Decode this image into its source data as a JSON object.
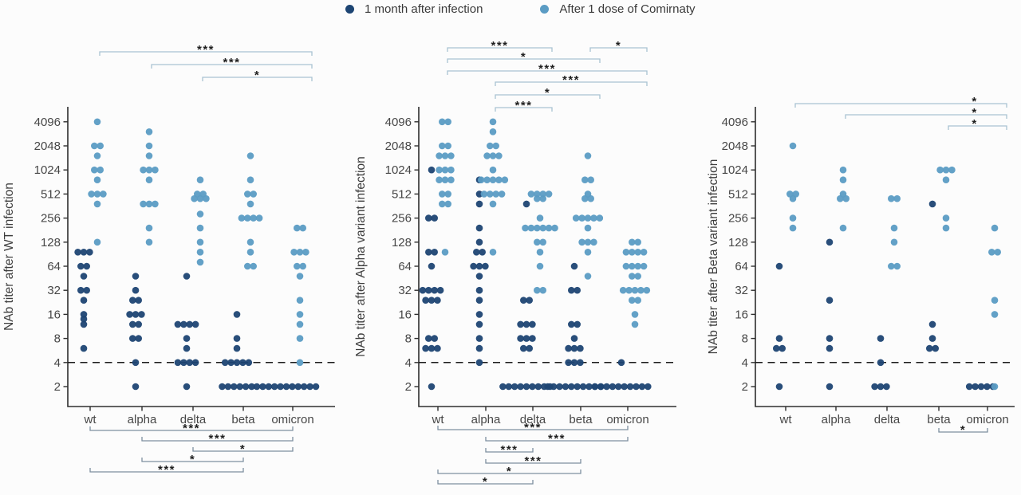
{
  "legend": {
    "items": [
      {
        "label": "1 month after infection",
        "series_key": "dark"
      },
      {
        "label": "After 1 dose of Comirnaty",
        "series_key": "light"
      }
    ]
  },
  "colors": {
    "dark": "#1d4573",
    "light": "#5b9cc4",
    "bracket_top": "#a9c3d2",
    "bracket_bottom": "#7e8fa0",
    "stars": "#1f1f1f",
    "axis": "#2e2e2e",
    "tick_text": "#474747",
    "axis_label_text": "#3d3d3d",
    "threshold_line": "#1a1a1a"
  },
  "chart_data": [
    {
      "panel_id": "wt-infection",
      "type": "scatter",
      "y_scale": "log2",
      "ylabel": "NAb titer after WT infection",
      "yticks": [
        2,
        4,
        8,
        16,
        32,
        64,
        128,
        256,
        512,
        1024,
        2048,
        4096
      ],
      "ylim": [
        2,
        4096
      ],
      "dashed_line_at": 4,
      "categories": [
        "wt",
        "alpha",
        "delta",
        "beta",
        "omicron"
      ],
      "series": [
        {
          "name": "1 month after infection",
          "color_key": "dark",
          "points": {
            "wt": [
              96,
              96,
              96,
              64,
              64,
              48,
              32,
              32,
              24,
              16,
              14,
              12,
              6
            ],
            "alpha": [
              48,
              32,
              24,
              24,
              16,
              16,
              16,
              12,
              12,
              8,
              8,
              4,
              2
            ],
            "delta": [
              48,
              12,
              12,
              12,
              12,
              8,
              6,
              4,
              4,
              4,
              4,
              2
            ],
            "beta": [
              16,
              8,
              6,
              4,
              4,
              4,
              4,
              4,
              2,
              2,
              2,
              2,
              2,
              2
            ],
            "omicron": [
              2,
              2,
              2,
              2,
              2,
              2,
              2,
              2,
              2,
              2,
              2
            ]
          }
        },
        {
          "name": "After 1 dose of Comirnaty",
          "color_key": "light",
          "points": {
            "wt": [
              4096,
              2048,
              2048,
              1536,
              1024,
              1024,
              768,
              512,
              512,
              512,
              384,
              128
            ],
            "alpha": [
              3072,
              2048,
              1536,
              1024,
              1024,
              1024,
              768,
              384,
              384,
              384,
              192,
              128
            ],
            "delta": [
              768,
              512,
              512,
              448,
              448,
              448,
              288,
              192,
              128,
              96,
              72
            ],
            "beta": [
              1536,
              768,
              512,
              512,
              384,
              256,
              256,
              256,
              256,
              128,
              96,
              64,
              64
            ],
            "omicron": [
              192,
              192,
              96,
              96,
              96,
              64,
              64,
              48,
              24,
              16,
              12,
              8,
              4
            ]
          }
        }
      ],
      "significance_top": [
        {
          "pair": [
            "wt",
            "omicron"
          ],
          "label": "***",
          "row": 0
        },
        {
          "pair": [
            "alpha",
            "omicron"
          ],
          "label": "***",
          "row": 1
        },
        {
          "pair": [
            "delta",
            "omicron"
          ],
          "label": "*",
          "row": 2
        }
      ],
      "significance_bottom": [
        {
          "pair": [
            "wt",
            "omicron"
          ],
          "label": "***",
          "row": 0
        },
        {
          "pair": [
            "alpha",
            "omicron"
          ],
          "label": "***",
          "row": 1
        },
        {
          "pair": [
            "delta",
            "omicron"
          ],
          "label": "*",
          "row": 2
        },
        {
          "pair": [
            "alpha",
            "beta"
          ],
          "label": "*",
          "row": 3
        },
        {
          "pair": [
            "wt",
            "beta"
          ],
          "label": "***",
          "row": 4
        }
      ]
    },
    {
      "panel_id": "alpha-variant-infection",
      "type": "scatter",
      "y_scale": "log2",
      "ylabel": "NAb titer after Alpha variant infection",
      "yticks": [
        2,
        4,
        8,
        16,
        32,
        64,
        128,
        256,
        512,
        1024,
        2048,
        4096
      ],
      "ylim": [
        2,
        4096
      ],
      "dashed_line_at": 4,
      "categories": [
        "wt",
        "alpha",
        "delta",
        "beta",
        "omicron"
      ],
      "series": [
        {
          "name": "1 month after infection",
          "color_key": "dark",
          "points": {
            "wt": [
              1024,
              256,
              256,
              96,
              96,
              64,
              32,
              32,
              32,
              32,
              24,
              24,
              24,
              8,
              8,
              6,
              6,
              6,
              2
            ],
            "alpha": [
              768,
              512,
              384,
              192,
              128,
              96,
              96,
              64,
              64,
              64,
              48,
              32,
              24,
              16,
              12,
              8,
              6,
              4
            ],
            "delta": [
              384,
              24,
              24,
              12,
              12,
              12,
              8,
              8,
              8,
              6,
              6,
              2,
              2,
              2,
              2,
              2,
              2,
              2,
              2,
              2
            ],
            "beta": [
              64,
              32,
              32,
              12,
              12,
              8,
              6,
              6,
              6,
              4,
              4,
              4,
              2,
              2,
              2,
              2,
              2,
              2,
              2,
              2,
              2,
              2
            ],
            "omicron": [
              4,
              2,
              2,
              2,
              2,
              2,
              2,
              2,
              2,
              2,
              2
            ]
          }
        },
        {
          "name": "After 1 dose of Comirnaty",
          "color_key": "light",
          "points": {
            "wt": [
              4096,
              4096,
              2048,
              2048,
              1536,
              1536,
              1536,
              1024,
              1024,
              1024,
              768,
              768,
              768,
              512,
              512,
              384,
              384,
              96
            ],
            "alpha": [
              4096,
              3072,
              2048,
              2048,
              1536,
              1536,
              1536,
              1024,
              768,
              768,
              768,
              768,
              768,
              512,
              512,
              512,
              512,
              384,
              96
            ],
            "delta": [
              512,
              512,
              512,
              512,
              448,
              448,
              256,
              192,
              192,
              192,
              192,
              192,
              192,
              128,
              128,
              96,
              64,
              32,
              32
            ],
            "beta": [
              1536,
              768,
              768,
              512,
              448,
              448,
              256,
              256,
              256,
              256,
              256,
              192,
              128,
              128,
              128,
              96,
              48
            ],
            "omicron": [
              128,
              128,
              96,
              96,
              96,
              96,
              64,
              64,
              64,
              64,
              48,
              48,
              32,
              32,
              32,
              32,
              32,
              24,
              24,
              16,
              12
            ]
          }
        }
      ],
      "significance_top": [
        {
          "pair": [
            "wt",
            "delta"
          ],
          "label": "***",
          "row": 0
        },
        {
          "pair": [
            "beta",
            "omicron"
          ],
          "label": "*",
          "row": 0
        },
        {
          "pair": [
            "wt",
            "beta"
          ],
          "label": "*",
          "row": 1
        },
        {
          "pair": [
            "wt",
            "omicron"
          ],
          "label": "***",
          "row": 2
        },
        {
          "pair": [
            "alpha",
            "omicron"
          ],
          "label": "***",
          "row": 3
        },
        {
          "pair": [
            "alpha",
            "beta"
          ],
          "label": "*",
          "row": 4
        },
        {
          "pair": [
            "alpha",
            "delta"
          ],
          "label": "***",
          "row": 5
        }
      ],
      "significance_bottom": [
        {
          "pair": [
            "wt",
            "omicron"
          ],
          "label": "***",
          "row": 0
        },
        {
          "pair": [
            "alpha",
            "omicron"
          ],
          "label": "***",
          "row": 1
        },
        {
          "pair": [
            "alpha",
            "delta"
          ],
          "label": "***",
          "row": 2
        },
        {
          "pair": [
            "alpha",
            "beta"
          ],
          "label": "***",
          "row": 3
        },
        {
          "pair": [
            "wt",
            "beta"
          ],
          "label": "*",
          "row": 4
        },
        {
          "pair": [
            "wt",
            "delta"
          ],
          "label": "*",
          "row": 5
        }
      ]
    },
    {
      "panel_id": "beta-variant-infection",
      "type": "scatter",
      "y_scale": "log2",
      "ylabel": "NAb titer after Beta variant infection",
      "yticks": [
        2,
        4,
        8,
        16,
        32,
        64,
        128,
        256,
        512,
        1024,
        2048,
        4096
      ],
      "ylim": [
        2,
        4096
      ],
      "dashed_line_at": 4,
      "categories": [
        "wt",
        "alpha",
        "delta",
        "beta",
        "omicron"
      ],
      "series": [
        {
          "name": "1 month after infection",
          "color_key": "dark",
          "points": {
            "wt": [
              64,
              8,
              6,
              6,
              2
            ],
            "alpha": [
              128,
              24,
              8,
              6,
              2
            ],
            "delta": [
              8,
              4,
              2,
              2,
              2
            ],
            "beta": [
              384,
              12,
              8,
              6,
              6
            ],
            "omicron": [
              2,
              2,
              2,
              2,
              2
            ]
          }
        },
        {
          "name": "After 1 dose of Comirnaty",
          "color_key": "light",
          "points": {
            "wt": [
              2048,
              512,
              512,
              448,
              256,
              192
            ],
            "alpha": [
              1024,
              768,
              512,
              448,
              448,
              192
            ],
            "delta": [
              448,
              448,
              192,
              128,
              64,
              64
            ],
            "beta": [
              1024,
              1024,
              1024,
              768,
              256,
              192
            ],
            "omicron": [
              192,
              96,
              96,
              24,
              16,
              2
            ]
          }
        }
      ],
      "significance_top": [
        {
          "pair": [
            "wt",
            "omicron"
          ],
          "label": "*",
          "row": 0,
          "align": "right"
        },
        {
          "pair": [
            "alpha",
            "omicron"
          ],
          "label": "*",
          "row": 1,
          "align": "right"
        },
        {
          "pair": [
            "beta",
            "omicron"
          ],
          "label": "*",
          "row": 2,
          "align": "right"
        }
      ],
      "significance_bottom": [
        {
          "pair": [
            "beta",
            "omicron"
          ],
          "label": "*",
          "row": 0
        }
      ]
    }
  ]
}
